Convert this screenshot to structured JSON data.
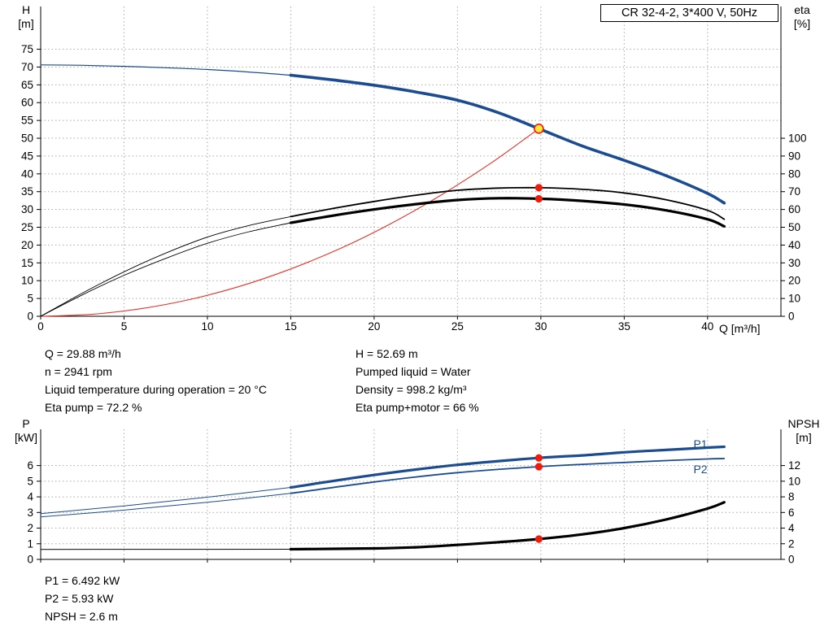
{
  "title_box": "CR 32-4-2, 3*400 V, 50Hz",
  "colors": {
    "curve_blue": "#1b4c91",
    "curve_black": "#000000",
    "curve_red": "#e63229",
    "marker_red": "#ee1c0c",
    "marker_yellow": "#ffe93d",
    "grid": "#a8a8a8",
    "axis": "#000000",
    "label_blue": "#1b4c91"
  },
  "info_top": {
    "left": [
      "Q = 29.88 m³/h",
      "n = 2941 rpm",
      "Liquid temperature during operation = 20 °C",
      "Eta pump = 72.2 %"
    ],
    "right": [
      "H = 52.69 m",
      "Pumped liquid = Water",
      "Density = 998.2 kg/m³",
      "Eta pump+motor = 66 %"
    ]
  },
  "info_bottom": [
    "P1 = 6.492 kW",
    "P2 = 5.93 kW",
    "NPSH = 2.6 m"
  ],
  "chart_data": [
    {
      "id": "hq",
      "type": "line",
      "title": "CR 32-4-2, 3*400 V, 50Hz",
      "x": {
        "label": "Q [m³/h]",
        "min": 0,
        "max": 44.4,
        "ticks": [
          0,
          5,
          10,
          15,
          20,
          25,
          30,
          35,
          40
        ],
        "show_labels": true
      },
      "y_left": {
        "name": "H",
        "unit": "[m]",
        "min": 0,
        "max": 87,
        "ticks": [
          0,
          5,
          10,
          15,
          20,
          25,
          30,
          35,
          40,
          45,
          50,
          55,
          60,
          65,
          70,
          75
        ]
      },
      "y_right": {
        "name": "eta",
        "unit": "[%]",
        "min": 0,
        "max": 174,
        "ticks": [
          0,
          10,
          20,
          30,
          40,
          50,
          60,
          70,
          80,
          90,
          100
        ]
      },
      "series": [
        {
          "name": "system-curve",
          "label": "System curve",
          "axis": "left",
          "color": "curve_red",
          "width": 1.1,
          "points": [
            [
              0,
              0
            ],
            [
              3,
              0.53
            ],
            [
              6,
              2.12
            ],
            [
              9,
              4.78
            ],
            [
              12,
              8.5
            ],
            [
              15,
              13.3
            ],
            [
              18,
              19.1
            ],
            [
              21,
              26.0
            ],
            [
              24,
              34.0
            ],
            [
              27,
              43.0
            ],
            [
              29.88,
              52.69
            ]
          ]
        },
        {
          "name": "eta-pump-low-flow",
          "label": "Eta pump",
          "axis": "right",
          "color": "curve_black",
          "width": 0.9,
          "points": [
            [
              0,
              0
            ],
            [
              2.5,
              13
            ],
            [
              5,
              25
            ],
            [
              7.5,
              35.5
            ],
            [
              10,
              44.5
            ],
            [
              12.5,
              51
            ],
            [
              15,
              56
            ]
          ]
        },
        {
          "name": "eta-pump-main",
          "label": "Eta pump",
          "axis": "right",
          "color": "curve_black",
          "width": 1.8,
          "points": [
            [
              15,
              56
            ],
            [
              17.5,
              60.5
            ],
            [
              20,
              64.5
            ],
            [
              22.5,
              68
            ],
            [
              25,
              70.8
            ],
            [
              27.5,
              72.0
            ],
            [
              30,
              72.2
            ],
            [
              32.5,
              71.3
            ],
            [
              35,
              69.3
            ],
            [
              37.5,
              65.5
            ],
            [
              40,
              59.5
            ],
            [
              41,
              54.5
            ]
          ]
        },
        {
          "name": "eta-pump-motor-low-flow",
          "label": "Eta pump+motor",
          "axis": "right",
          "color": "curve_black",
          "width": 0.9,
          "points": [
            [
              0,
              0
            ],
            [
              2.5,
              12
            ],
            [
              5,
              23
            ],
            [
              7.5,
              32.5
            ],
            [
              10,
              41
            ],
            [
              12.5,
              47.5
            ],
            [
              15,
              52.5
            ]
          ]
        },
        {
          "name": "eta-pump-motor-main",
          "label": "Eta pump+motor",
          "axis": "right",
          "color": "curve_black",
          "width": 3.2,
          "points": [
            [
              15,
              52.5
            ],
            [
              17.5,
              56.5
            ],
            [
              20,
              60
            ],
            [
              22.5,
              63
            ],
            [
              25,
              65.3
            ],
            [
              27.5,
              66.3
            ],
            [
              30,
              66
            ],
            [
              32.5,
              64.8
            ],
            [
              35,
              62.8
            ],
            [
              37.5,
              59.5
            ],
            [
              40,
              54.5
            ],
            [
              41,
              50.5
            ]
          ]
        },
        {
          "name": "head-low-flow",
          "label": "H",
          "axis": "left",
          "color": "curve_blue",
          "width": 1.2,
          "points": [
            [
              0,
              70.6
            ],
            [
              2.5,
              70.5
            ],
            [
              5,
              70.2
            ],
            [
              7.5,
              69.8
            ],
            [
              10,
              69.3
            ],
            [
              12.5,
              68.6
            ],
            [
              15,
              67.7
            ]
          ]
        },
        {
          "name": "head-main",
          "label": "H",
          "axis": "left",
          "color": "curve_blue",
          "width": 3.6,
          "points": [
            [
              15,
              67.7
            ],
            [
              17.5,
              66.4
            ],
            [
              20,
              64.9
            ],
            [
              22.5,
              63.0
            ],
            [
              25,
              60.7
            ],
            [
              27.5,
              57.1
            ],
            [
              29.88,
              52.69
            ],
            [
              32.5,
              47.8
            ],
            [
              35,
              43.8
            ],
            [
              37.5,
              39.5
            ],
            [
              40,
              34.5
            ],
            [
              41,
              31.8
            ]
          ]
        }
      ],
      "markers": [
        {
          "name": "duty-point",
          "axis": "left",
          "q": 29.88,
          "v": 52.69,
          "r": 5.5,
          "fill": "marker_yellow",
          "stroke": "marker_red",
          "stroke_width": 1.6
        },
        {
          "name": "eta-pump-point",
          "axis": "right",
          "q": 29.88,
          "v": 72.2,
          "r": 4.6,
          "fill": "marker_red"
        },
        {
          "name": "eta-pump-motor-point",
          "axis": "right",
          "q": 29.88,
          "v": 66,
          "r": 4.6,
          "fill": "marker_red"
        }
      ]
    },
    {
      "id": "power",
      "type": "line",
      "title": "",
      "x": {
        "label": "",
        "min": 0,
        "max": 44.4,
        "ticks": [
          0,
          5,
          10,
          15,
          20,
          25,
          30,
          35,
          40
        ],
        "show_labels": false
      },
      "y_left": {
        "name": "P",
        "unit": "[kW]",
        "min": 0,
        "max": 8.32,
        "ticks": [
          0,
          1,
          2,
          3,
          4,
          5,
          6
        ]
      },
      "y_right": {
        "name": "NPSH",
        "unit": "[m]",
        "min": 0,
        "max": 16.64,
        "ticks": [
          0,
          2,
          4,
          6,
          8,
          10,
          12
        ]
      },
      "series": [
        {
          "name": "p1-low-flow",
          "label": "P1",
          "axis": "left",
          "color": "curve_blue",
          "width": 1,
          "points": [
            [
              0,
              2.93
            ],
            [
              5,
              3.42
            ],
            [
              10,
              3.98
            ],
            [
              15,
              4.6
            ]
          ]
        },
        {
          "name": "p1-main",
          "label": "P1",
          "axis": "left",
          "color": "curve_blue",
          "width": 3.2,
          "points": [
            [
              15,
              4.6
            ],
            [
              20,
              5.4
            ],
            [
              25,
              6.05
            ],
            [
              29.88,
              6.492
            ],
            [
              32.5,
              6.65
            ],
            [
              35,
              6.85
            ],
            [
              37.5,
              7.0
            ],
            [
              40,
              7.15
            ],
            [
              41,
              7.2
            ]
          ]
        },
        {
          "name": "p2-low-flow",
          "label": "P2",
          "axis": "left",
          "color": "curve_blue",
          "width": 1,
          "points": [
            [
              0,
              2.72
            ],
            [
              5,
              3.15
            ],
            [
              10,
              3.65
            ],
            [
              15,
              4.22
            ]
          ]
        },
        {
          "name": "p2-main",
          "label": "P2",
          "axis": "left",
          "color": "curve_blue",
          "width": 1.8,
          "points": [
            [
              15,
              4.22
            ],
            [
              20,
              4.95
            ],
            [
              25,
              5.55
            ],
            [
              29.88,
              5.93
            ],
            [
              32.5,
              6.08
            ],
            [
              35,
              6.2
            ],
            [
              37.5,
              6.32
            ],
            [
              40,
              6.42
            ],
            [
              41,
              6.45
            ]
          ]
        },
        {
          "name": "npsh-low-flow",
          "label": "NPSH",
          "axis": "right",
          "color": "curve_black",
          "width": 1,
          "points": [
            [
              0,
              1.28
            ],
            [
              7.5,
              1.29
            ],
            [
              15,
              1.3
            ]
          ]
        },
        {
          "name": "npsh-main",
          "label": "NPSH",
          "axis": "right",
          "color": "curve_black",
          "width": 3.2,
          "points": [
            [
              15,
              1.3
            ],
            [
              20,
              1.4
            ],
            [
              22.5,
              1.55
            ],
            [
              25,
              1.85
            ],
            [
              27.5,
              2.2
            ],
            [
              29.88,
              2.6
            ],
            [
              32.5,
              3.2
            ],
            [
              35,
              4.0
            ],
            [
              37.5,
              5.1
            ],
            [
              40,
              6.5
            ],
            [
              41,
              7.3
            ]
          ]
        }
      ],
      "markers": [
        {
          "name": "p1-point",
          "axis": "left",
          "q": 29.88,
          "v": 6.492,
          "r": 4.6,
          "fill": "marker_red"
        },
        {
          "name": "p2-point",
          "axis": "left",
          "q": 29.88,
          "v": 5.93,
          "r": 4.6,
          "fill": "marker_red"
        },
        {
          "name": "npsh-point",
          "axis": "right",
          "q": 29.88,
          "v": 2.6,
          "r": 4.6,
          "fill": "marker_red"
        }
      ]
    }
  ]
}
